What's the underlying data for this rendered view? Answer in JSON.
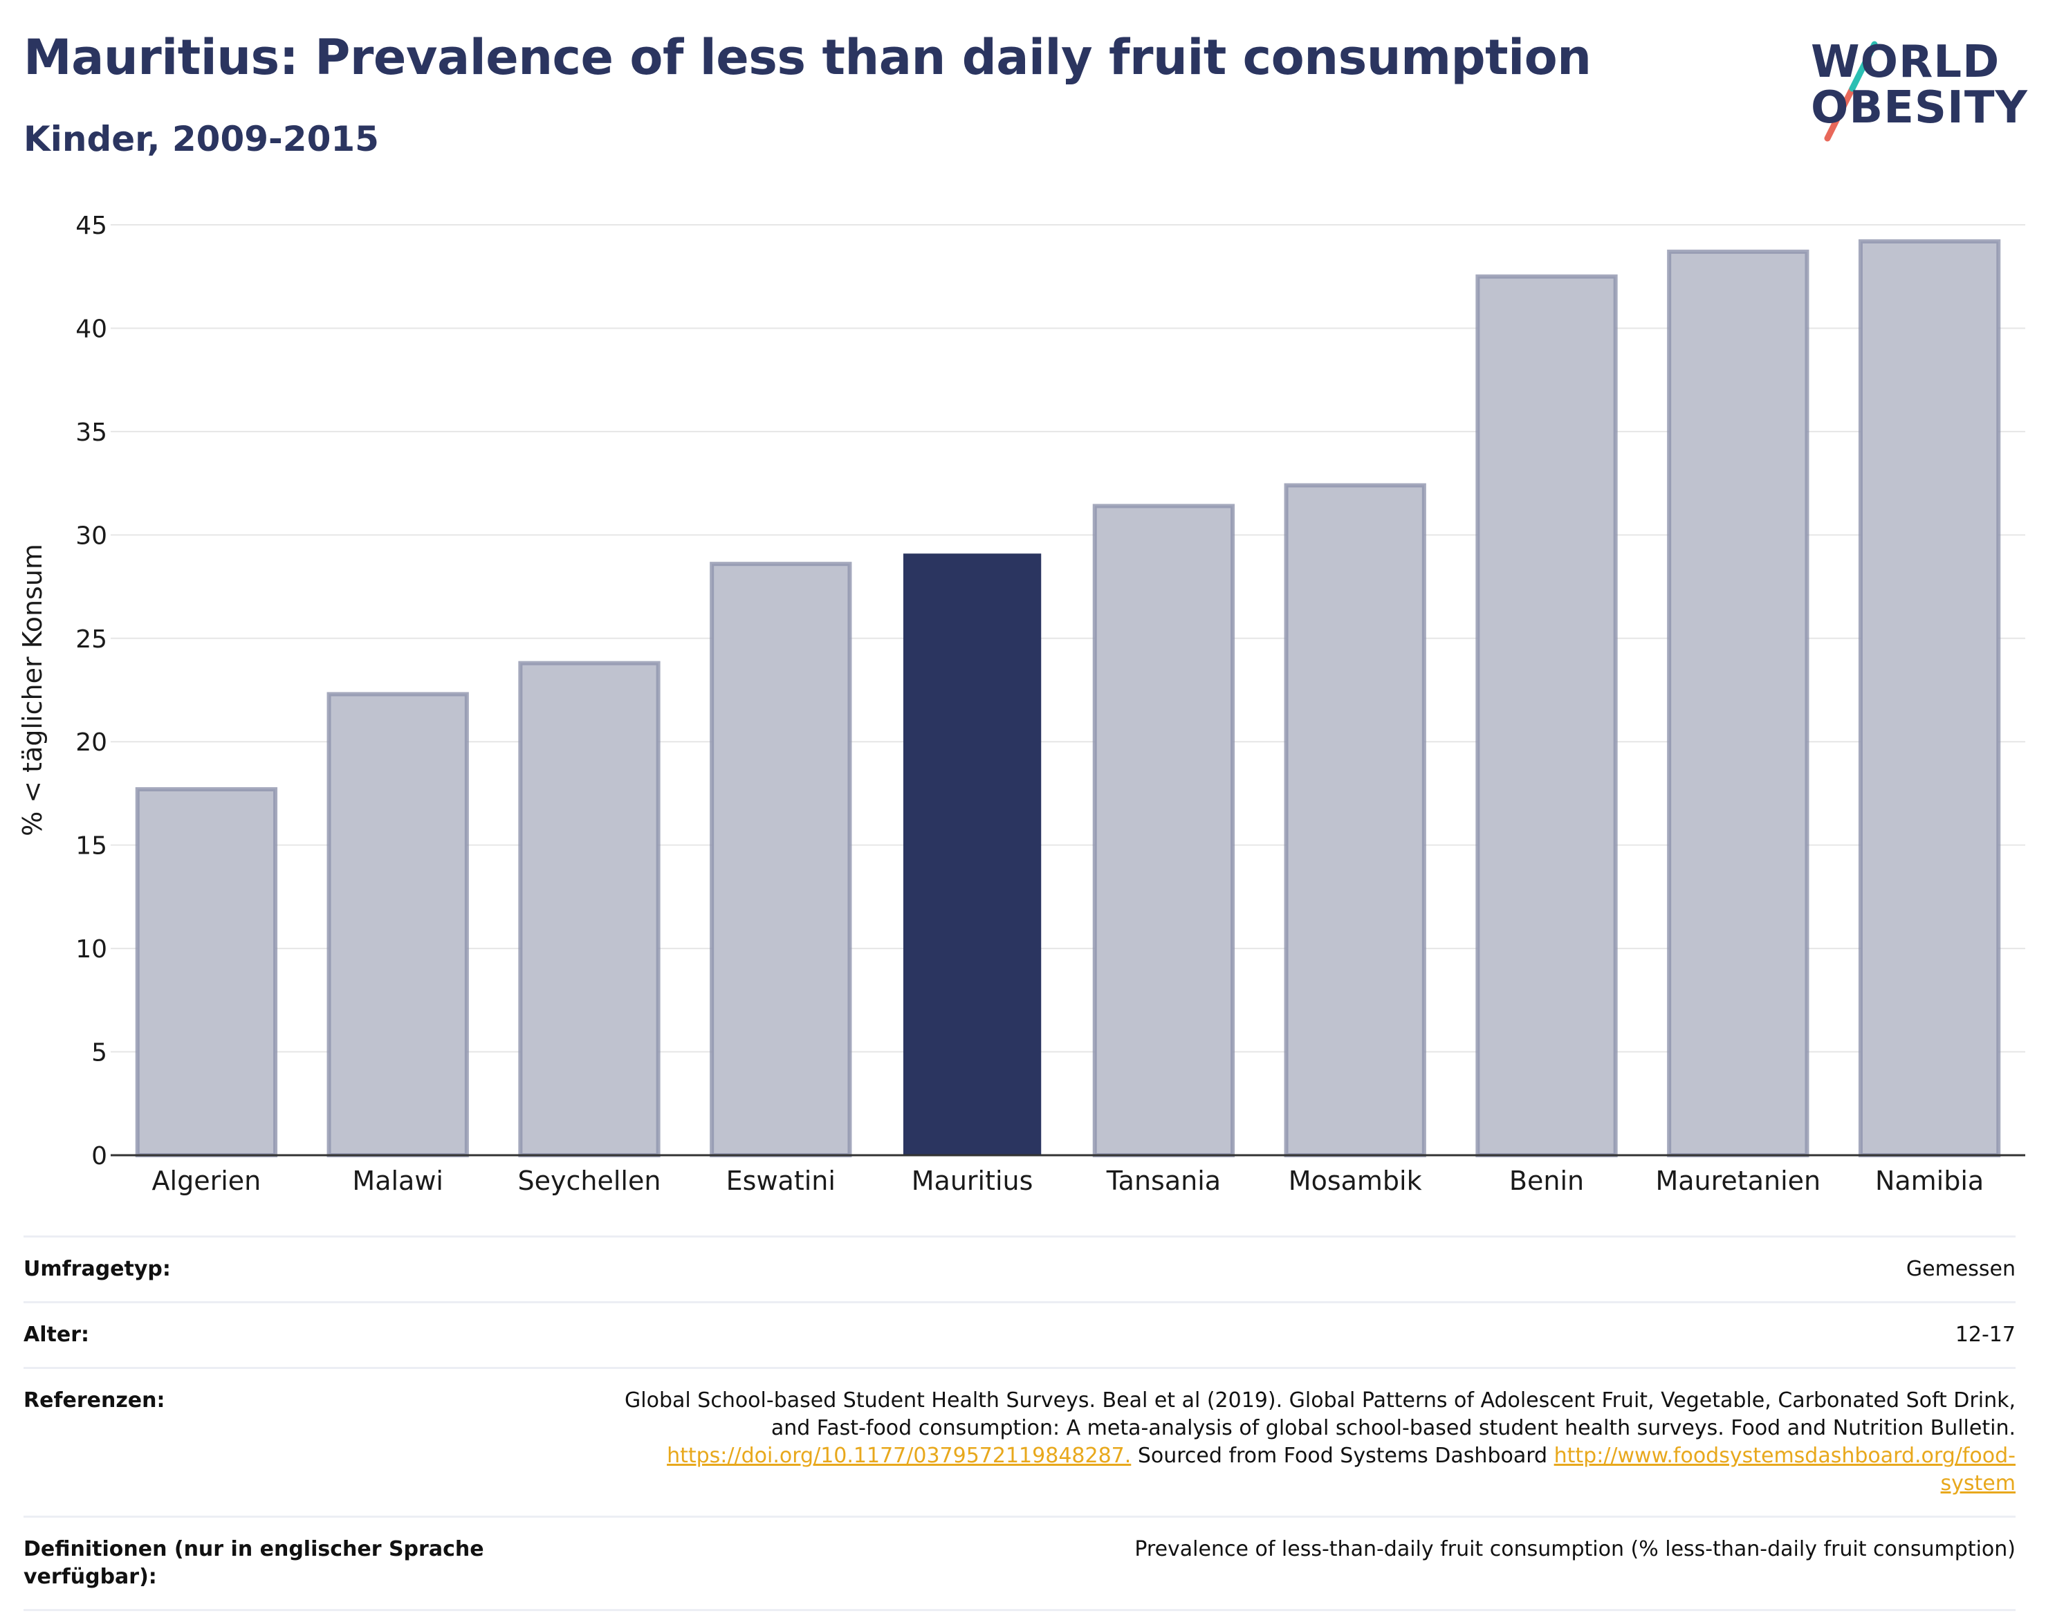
{
  "header": {
    "title": "Mauritius: Prevalence of less than daily fruit consumption",
    "subtitle": "Kinder, 2009-2015"
  },
  "logo": {
    "line1": "WORLD",
    "line2": "OBESITY",
    "colors": {
      "text": "#2b3560",
      "slash_top": "#2bbfb3",
      "slash_bottom": "#e8685a"
    }
  },
  "colors": {
    "highlight_bar": "#2b3560",
    "other_bar_fill": "#bfc2cf",
    "other_bar_stroke": "#8f94ad",
    "grid": "#e6e6e6",
    "axis": "#333333",
    "link": "#e8a81c"
  },
  "chart_data": {
    "type": "bar",
    "title": "",
    "xlabel": "",
    "ylabel": "% < täglicher Konsum",
    "ylim": [
      0,
      45
    ],
    "yticks": [
      0,
      5,
      10,
      15,
      20,
      25,
      30,
      35,
      40,
      45
    ],
    "grid": true,
    "categories": [
      "Algerien",
      "Malawi",
      "Seychellen",
      "Eswatini",
      "Mauritius",
      "Tansania",
      "Mosambik",
      "Benin",
      "Mauretanien",
      "Namibia"
    ],
    "values": [
      17.7,
      22.3,
      23.8,
      28.6,
      29.1,
      31.4,
      32.4,
      42.5,
      43.7,
      44.2
    ],
    "highlight": "Mauritius"
  },
  "meta": {
    "survey_type": {
      "label": "Umfragetyp:",
      "value": "Gemessen"
    },
    "age": {
      "label": "Alter:",
      "value": "12-17"
    },
    "references": {
      "label": "Referenzen:",
      "text1": "Global School-based Student Health Surveys. Beal et al (2019). Global Patterns of Adolescent Fruit, Vegetable, Carbonated Soft Drink,",
      "text2": "and Fast-food consumption: A meta-analysis of global school-based student health surveys. Food and Nutrition Bulletin.",
      "link1": "https://doi.org/10.1177/0379572119848287.",
      "text3": " Sourced from Food Systems Dashboard ",
      "link2a": "http://www.foodsystemsdashboard.org/food-",
      "link2b": "system"
    },
    "definitions": {
      "label": "Definitionen (nur in englischer Sprache verfügbar):",
      "value": "Prevalence of less-than-daily fruit consumption (% less-than-daily fruit consumption)"
    }
  }
}
